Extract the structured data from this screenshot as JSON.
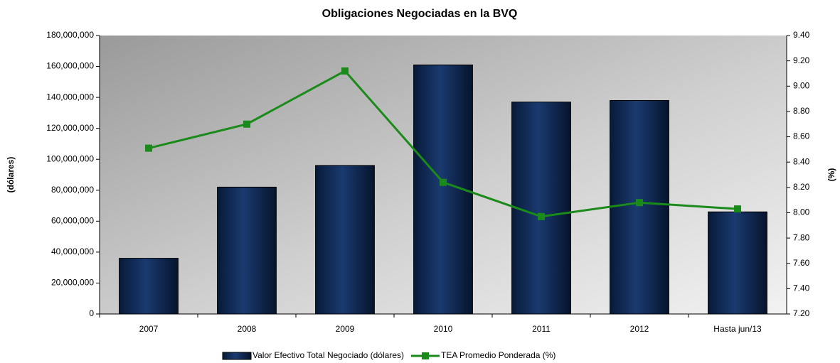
{
  "chart_data": {
    "type": "bar_line",
    "title": "Obligaciones Negociadas en la BVQ",
    "y_label": "(dólares)",
    "y2_label": "(%)",
    "categories": [
      "2007",
      "2008",
      "2009",
      "2010",
      "2011",
      "2012",
      "Hasta jun/13"
    ],
    "series": [
      {
        "name": "Valor Efectivo Total Negociado (dólares)",
        "type": "bar",
        "color": "#0f2a55",
        "values": [
          36000000,
          82000000,
          96000000,
          161000000,
          137000000,
          138000000,
          66000000
        ]
      },
      {
        "name": "TEA Promedio Ponderada (%)",
        "type": "line",
        "axis": "y2",
        "color": "#1a8a1a",
        "values": [
          8.51,
          8.7,
          9.12,
          8.24,
          7.97,
          8.08,
          8.03
        ]
      }
    ],
    "ylim": [
      0,
      180000000
    ],
    "yticks": [
      0,
      {
        "value": 20000000,
        "label": "20,000,000"
      },
      {
        "value": 40000000,
        "label": "40,000,000"
      },
      {
        "value": 60000000,
        "label": "60,000,000"
      },
      {
        "value": 80000000,
        "label": "80,000,000"
      },
      {
        "value": 100000000,
        "label": "100,000,000"
      },
      {
        "value": 120000000,
        "label": "120,000,000"
      },
      {
        "value": 140000000,
        "label": "140,000,000"
      },
      {
        "value": 160000000,
        "label": "160,000,000"
      },
      {
        "value": 180000000,
        "label": "180,000,000"
      }
    ],
    "y2lim": [
      7.2,
      9.4
    ],
    "y2ticks": [
      {
        "value": 7.2,
        "label": "7.20"
      },
      {
        "value": 7.4,
        "label": "7.40"
      },
      {
        "value": 7.6,
        "label": "7.60"
      },
      {
        "value": 7.8,
        "label": "7.80"
      },
      {
        "value": 8.0,
        "label": "8.00"
      },
      {
        "value": 8.2,
        "label": "8.20"
      },
      {
        "value": 8.4,
        "label": "8.40"
      },
      {
        "value": 8.6,
        "label": "8.60"
      },
      {
        "value": 8.8,
        "label": "8.80"
      },
      {
        "value": 9.0,
        "label": "9.00"
      },
      {
        "value": 9.2,
        "label": "9.20"
      },
      {
        "value": 9.4,
        "label": "9.40"
      }
    ],
    "legend": "bottom"
  }
}
